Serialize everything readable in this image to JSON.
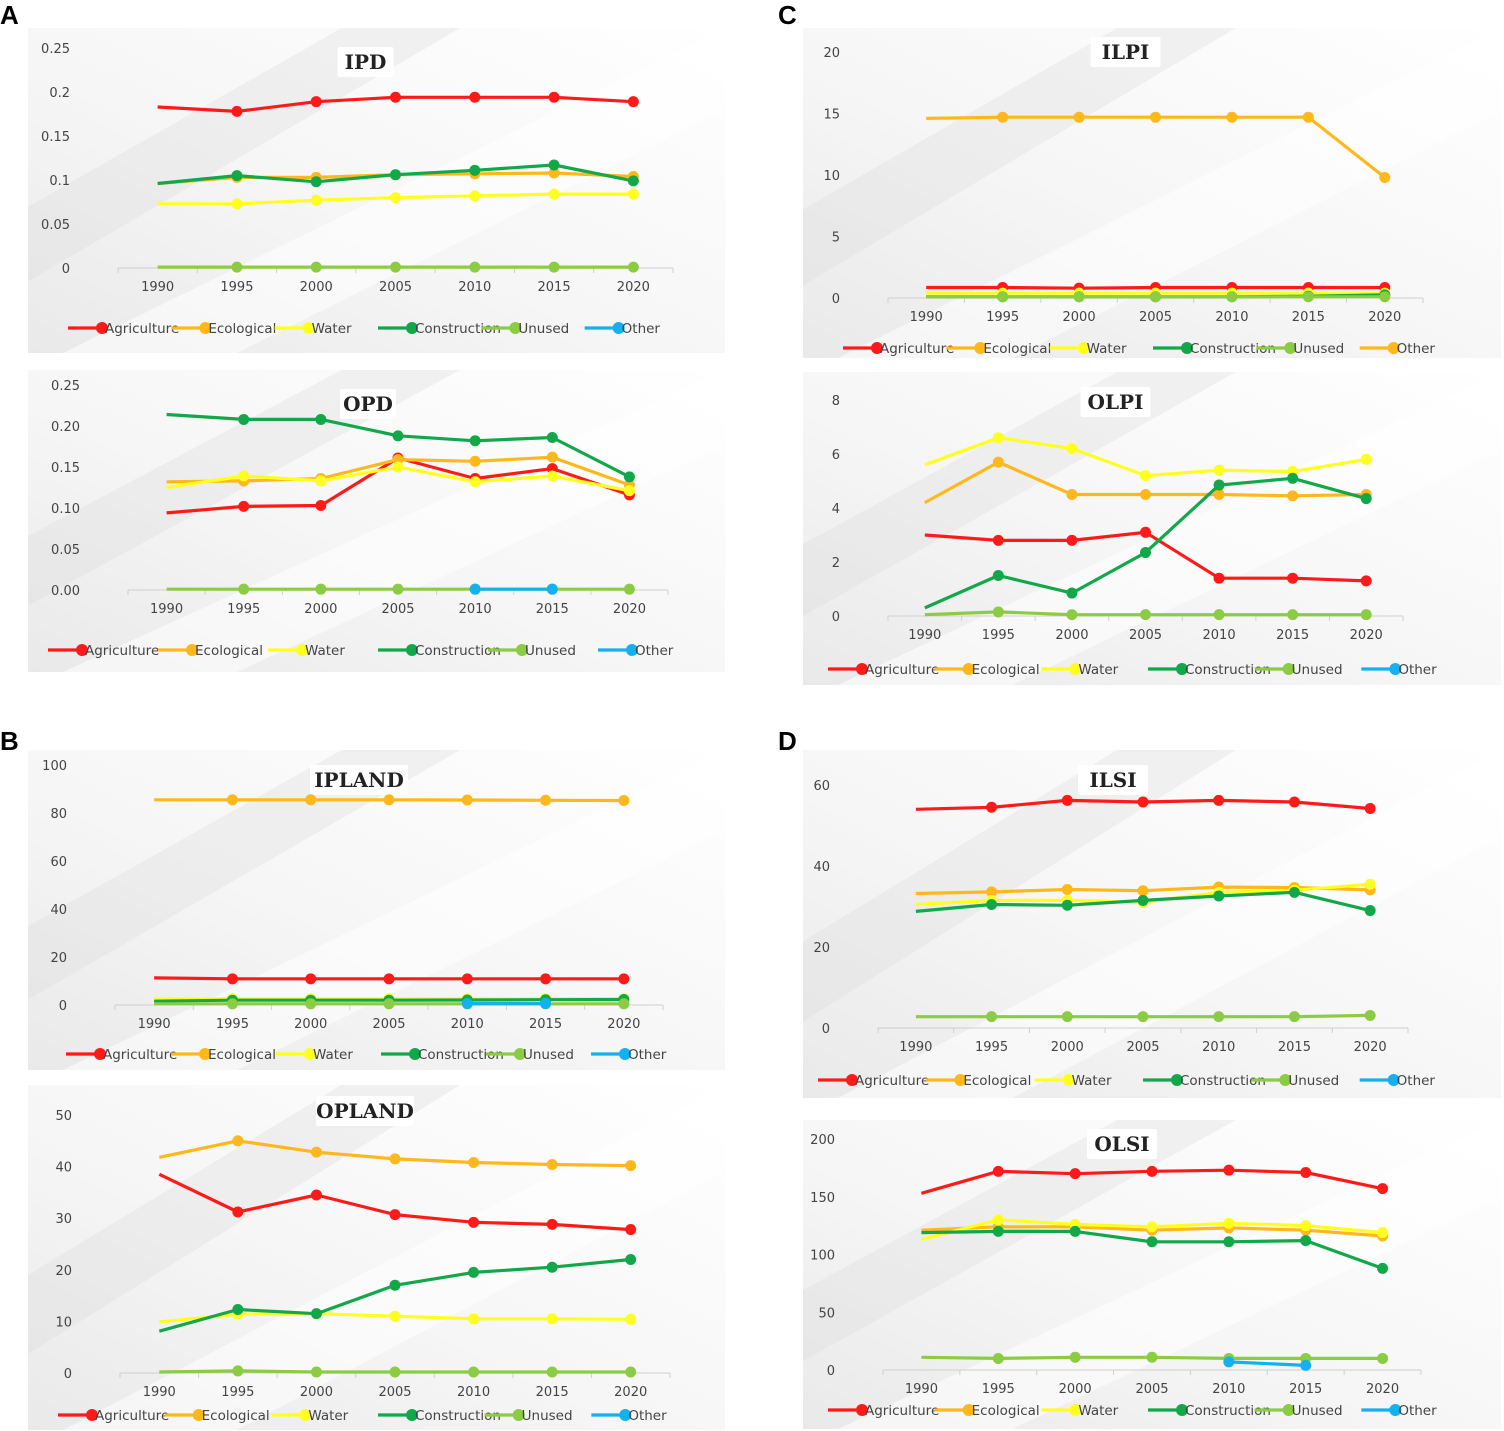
{
  "panel_labels": [
    "A",
    "B",
    "C",
    "D"
  ],
  "colors": {
    "Agriculture": "#ff1a1a",
    "Ecological": "#ffb81c",
    "Water": "#ffff1f",
    "Construction": "#12a84a",
    "Unused": "#8ccc45",
    "Other": "#14b1ee"
  },
  "chart_data": [
    {
      "id": "ipd",
      "type": "line",
      "title": "IPD",
      "categories": [
        "1990",
        "1995",
        "2000",
        "2005",
        "2010",
        "2015",
        "2020"
      ],
      "ylim": [
        0,
        0.25
      ],
      "yticks": [
        "0",
        "0.05",
        "0.1",
        "0.15",
        "0.2",
        "0.25"
      ],
      "legend": [
        "Agriculture",
        "Ecological",
        "Water",
        "Construction",
        "Unused",
        "Other"
      ],
      "series": [
        {
          "name": "Agriculture",
          "values": [
            0.183,
            0.178,
            0.189,
            0.194,
            0.194,
            0.194,
            0.189
          ]
        },
        {
          "name": "Ecological",
          "values": [
            0.096,
            0.103,
            0.103,
            0.106,
            0.107,
            0.108,
            0.104
          ]
        },
        {
          "name": "Water",
          "values": [
            0.073,
            0.073,
            0.077,
            0.08,
            0.082,
            0.084,
            0.084
          ]
        },
        {
          "name": "Construction",
          "values": [
            0.096,
            0.105,
            0.098,
            0.106,
            0.111,
            0.117,
            0.099
          ]
        },
        {
          "name": "Unused",
          "values": [
            0.001,
            0.001,
            0.001,
            0.001,
            0.001,
            0.001,
            0.001
          ]
        }
      ]
    },
    {
      "id": "opd",
      "type": "line",
      "title": "OPD",
      "categories": [
        "1990",
        "1995",
        "2000",
        "2005",
        "2010",
        "2015",
        "2020"
      ],
      "ylim": [
        0,
        0.25
      ],
      "yticks": [
        "0.00",
        "0.05",
        "0.10",
        "0.15",
        "0.20",
        "0.25"
      ],
      "legend": [
        "Agriculture",
        "Ecological",
        "Water",
        "Construction",
        "Unused",
        "Other"
      ],
      "series": [
        {
          "name": "Agriculture",
          "values": [
            0.094,
            0.102,
            0.103,
            0.161,
            0.136,
            0.148,
            0.116
          ]
        },
        {
          "name": "Ecological",
          "values": [
            0.132,
            0.133,
            0.136,
            0.159,
            0.157,
            0.162,
            0.128
          ]
        },
        {
          "name": "Water",
          "values": [
            0.125,
            0.139,
            0.133,
            0.15,
            0.132,
            0.139,
            0.121
          ]
        },
        {
          "name": "Construction",
          "values": [
            0.214,
            0.208,
            0.208,
            0.188,
            0.182,
            0.186,
            0.138
          ]
        },
        {
          "name": "Unused",
          "values": [
            0.001,
            0.001,
            0.001,
            0.001,
            0.001,
            0.001,
            0.001
          ]
        },
        {
          "name": "Other",
          "values": [
            null,
            null,
            null,
            null,
            0.001,
            0.001,
            null
          ]
        }
      ]
    },
    {
      "id": "ipland",
      "type": "line",
      "title": "IPLAND",
      "categories": [
        "1990",
        "1995",
        "2000",
        "2005",
        "2010",
        "2015",
        "2020"
      ],
      "ylim": [
        0,
        100
      ],
      "yticks": [
        "0",
        "20",
        "40",
        "60",
        "80",
        "100"
      ],
      "legend": [
        "Agriculture",
        "Ecological",
        "Water",
        "Construction",
        "Unused",
        "Other"
      ],
      "series": [
        {
          "name": "Agriculture",
          "values": [
            11.3,
            10.9,
            10.9,
            10.9,
            10.9,
            10.9,
            10.9
          ]
        },
        {
          "name": "Ecological",
          "values": [
            85.5,
            85.5,
            85.5,
            85.5,
            85.4,
            85.3,
            85.2
          ]
        },
        {
          "name": "Water",
          "values": [
            2.5,
            2.6,
            2.6,
            2.6,
            2.6,
            2.6,
            2.6
          ]
        },
        {
          "name": "Construction",
          "values": [
            1.6,
            2.0,
            2.0,
            2.0,
            2.1,
            2.2,
            2.3
          ]
        },
        {
          "name": "Unused",
          "values": [
            0.5,
            0.5,
            0.5,
            0.5,
            0.5,
            0.5,
            0.5
          ]
        },
        {
          "name": "Other",
          "values": [
            null,
            null,
            null,
            null,
            0.6,
            0.6,
            null
          ]
        }
      ]
    },
    {
      "id": "opland",
      "type": "line",
      "title": "OPLAND",
      "categories": [
        "1990",
        "1995",
        "2000",
        "2005",
        "2010",
        "2015",
        "2020"
      ],
      "ylim": [
        0,
        50
      ],
      "yticks": [
        "0",
        "10",
        "20",
        "30",
        "40",
        "50"
      ],
      "legend": [
        "Agriculture",
        "Ecological",
        "Water",
        "Construction",
        "Unused",
        "Other"
      ],
      "series": [
        {
          "name": "Agriculture",
          "values": [
            38.5,
            31.2,
            34.5,
            30.7,
            29.2,
            28.8,
            27.8
          ]
        },
        {
          "name": "Ecological",
          "values": [
            41.8,
            45.0,
            42.8,
            41.5,
            40.8,
            40.4,
            40.2
          ]
        },
        {
          "name": "Water",
          "values": [
            9.9,
            11.4,
            11.5,
            11.0,
            10.5,
            10.5,
            10.4
          ]
        },
        {
          "name": "Construction",
          "values": [
            8.1,
            12.3,
            11.5,
            17.0,
            19.5,
            20.5,
            22.0
          ]
        },
        {
          "name": "Unused",
          "values": [
            0.2,
            0.4,
            0.2,
            0.2,
            0.2,
            0.2,
            0.2
          ]
        }
      ]
    },
    {
      "id": "ilpi",
      "type": "line",
      "title": "ILPI",
      "categories": [
        "1990",
        "1995",
        "2000",
        "2005",
        "2010",
        "2015",
        "2020"
      ],
      "ylim": [
        0,
        20
      ],
      "yticks": [
        "0",
        "5",
        "10",
        "15",
        "20"
      ],
      "legend": [
        "Agriculture",
        "Ecological",
        "Water",
        "Construction",
        "Unused",
        "Other"
      ],
      "legend_marker_colors": [
        "Agriculture",
        "Ecological",
        "Water",
        "Construction",
        "Unused",
        "Ecological"
      ],
      "series": [
        {
          "name": "Agriculture",
          "values": [
            0.85,
            0.85,
            0.8,
            0.85,
            0.85,
            0.85,
            0.85
          ]
        },
        {
          "name": "Ecological",
          "values": [
            14.6,
            14.7,
            14.7,
            14.7,
            14.7,
            14.7,
            9.8
          ]
        },
        {
          "name": "Water",
          "values": [
            0.4,
            0.4,
            0.4,
            0.4,
            0.4,
            0.4,
            0.4
          ]
        },
        {
          "name": "Construction",
          "values": [
            0.1,
            0.1,
            0.1,
            0.1,
            0.1,
            0.15,
            0.25
          ]
        },
        {
          "name": "Unused",
          "values": [
            0.1,
            0.1,
            0.1,
            0.1,
            0.1,
            0.1,
            0.1
          ]
        }
      ]
    },
    {
      "id": "olpi",
      "type": "line",
      "title": "OLPI",
      "categories": [
        "1990",
        "1995",
        "2000",
        "2005",
        "2010",
        "2015",
        "2020"
      ],
      "ylim": [
        0,
        8
      ],
      "yticks": [
        "0",
        "2",
        "4",
        "6",
        "8"
      ],
      "legend": [
        "Agriculture",
        "Ecological",
        "Water",
        "Construction",
        "Unused",
        "Other"
      ],
      "series": [
        {
          "name": "Agriculture",
          "values": [
            3.0,
            2.8,
            2.8,
            3.1,
            1.4,
            1.4,
            1.3
          ]
        },
        {
          "name": "Ecological",
          "values": [
            4.2,
            5.7,
            4.5,
            4.5,
            4.5,
            4.45,
            4.5
          ]
        },
        {
          "name": "Water",
          "values": [
            5.6,
            6.6,
            6.2,
            5.2,
            5.4,
            5.35,
            5.8
          ]
        },
        {
          "name": "Construction",
          "values": [
            0.3,
            1.5,
            0.85,
            2.35,
            4.85,
            5.1,
            4.35
          ]
        },
        {
          "name": "Unused",
          "values": [
            0.05,
            0.15,
            0.05,
            0.05,
            0.05,
            0.05,
            0.05
          ]
        }
      ]
    },
    {
      "id": "ilsi",
      "type": "line",
      "title": "ILSI",
      "categories": [
        "1990",
        "1995",
        "2000",
        "2005",
        "2010",
        "2015",
        "2020"
      ],
      "ylim": [
        0,
        60
      ],
      "yticks": [
        "0",
        "20",
        "40",
        "60"
      ],
      "legend": [
        "Agriculture",
        "Ecological",
        "Water",
        "Construction",
        "Unused",
        "Other"
      ],
      "series": [
        {
          "name": "Agriculture",
          "values": [
            54.0,
            54.5,
            56.2,
            55.8,
            56.2,
            55.8,
            54.2
          ]
        },
        {
          "name": "Ecological",
          "values": [
            33.2,
            33.6,
            34.2,
            33.9,
            34.8,
            34.7,
            34.1
          ]
        },
        {
          "name": "Water",
          "values": [
            30.5,
            31.5,
            31.5,
            31.0,
            33.5,
            34.0,
            35.5
          ]
        },
        {
          "name": "Construction",
          "values": [
            28.8,
            30.5,
            30.3,
            31.5,
            32.6,
            33.5,
            29.0
          ]
        },
        {
          "name": "Unused",
          "values": [
            2.8,
            2.8,
            2.8,
            2.8,
            2.8,
            2.8,
            3.1
          ]
        }
      ]
    },
    {
      "id": "olsi",
      "type": "line",
      "title": "OLSI",
      "categories": [
        "1990",
        "1995",
        "2000",
        "2005",
        "2010",
        "2015",
        "2020"
      ],
      "ylim": [
        0,
        200
      ],
      "yticks": [
        "0",
        "50",
        "100",
        "150",
        "200"
      ],
      "legend": [
        "Agriculture",
        "Ecological",
        "Water",
        "Construction",
        "Unused",
        "Other"
      ],
      "series": [
        {
          "name": "Agriculture",
          "values": [
            153,
            172,
            170,
            172,
            173,
            171,
            157
          ]
        },
        {
          "name": "Ecological",
          "values": [
            121,
            124,
            124,
            121,
            123,
            121,
            116
          ]
        },
        {
          "name": "Water",
          "values": [
            113,
            130,
            126,
            124,
            127,
            125,
            119
          ]
        },
        {
          "name": "Construction",
          "values": [
            119,
            120,
            120,
            111,
            111,
            112,
            88
          ]
        },
        {
          "name": "Unused",
          "values": [
            11,
            10,
            11,
            11,
            10,
            10,
            10
          ]
        },
        {
          "name": "Other",
          "values": [
            null,
            null,
            null,
            null,
            7,
            4,
            null
          ]
        }
      ]
    }
  ]
}
